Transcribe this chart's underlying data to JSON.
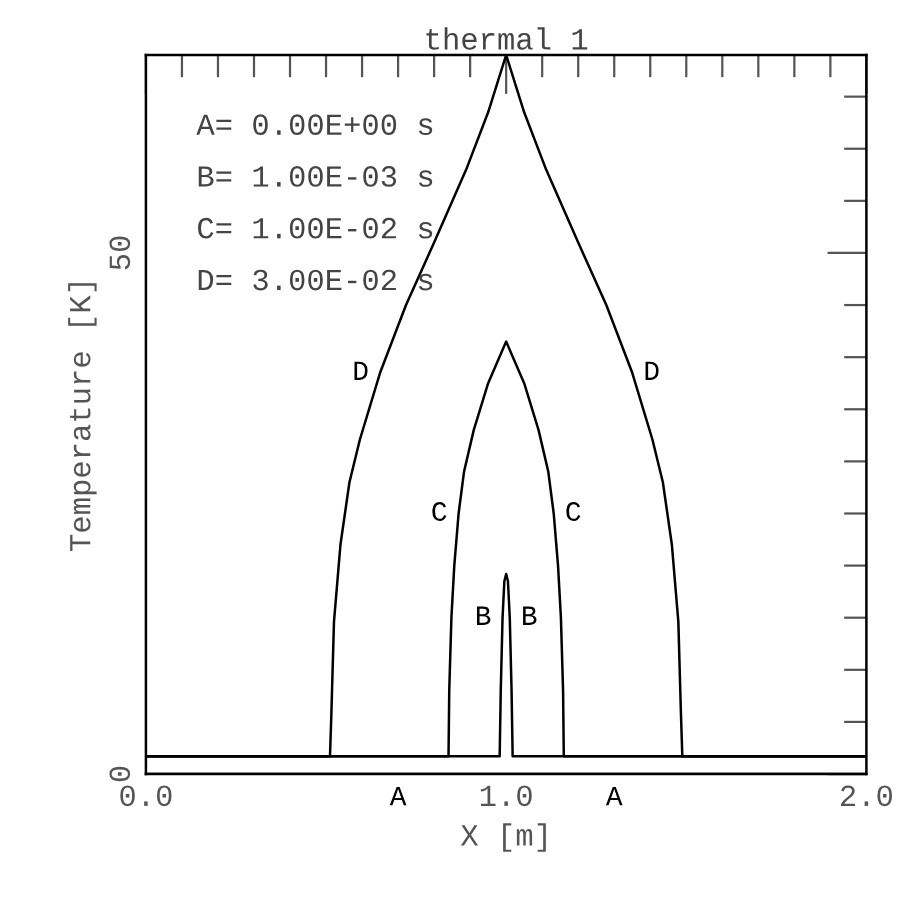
{
  "chart_data": {
    "type": "line",
    "title": "thermal 1",
    "xlabel": "X [m]",
    "ylabel": "Temperature [K]",
    "xlim": [
      0,
      2
    ],
    "ylim": [
      0,
      69
    ],
    "xticks": [
      {
        "value": 0,
        "label": "0.0"
      },
      {
        "value": 0.1,
        "label": null
      },
      {
        "value": 0.2,
        "label": null
      },
      {
        "value": 0.3,
        "label": null
      },
      {
        "value": 0.4,
        "label": null
      },
      {
        "value": 0.5,
        "label": null
      },
      {
        "value": 0.6,
        "label": null
      },
      {
        "value": 0.7,
        "label": null
      },
      {
        "value": 0.8,
        "label": null
      },
      {
        "value": 0.9,
        "label": null
      },
      {
        "value": 1,
        "label": "1.0"
      },
      {
        "value": 1.1,
        "label": null
      },
      {
        "value": 1.2,
        "label": null
      },
      {
        "value": 1.3,
        "label": null
      },
      {
        "value": 1.4,
        "label": null
      },
      {
        "value": 1.5,
        "label": null
      },
      {
        "value": 1.6,
        "label": null
      },
      {
        "value": 1.7,
        "label": null
      },
      {
        "value": 1.8,
        "label": null
      },
      {
        "value": 1.9,
        "label": null
      },
      {
        "value": 2,
        "label": "2.0"
      }
    ],
    "yticks": [
      0,
      {
        "value": 5,
        "label": null
      },
      {
        "value": 10,
        "label": null
      },
      {
        "value": 15,
        "label": null
      },
      {
        "value": 20,
        "label": null
      },
      {
        "value": 25,
        "label": null
      },
      {
        "value": 30,
        "label": null
      },
      {
        "value": 35,
        "label": null
      },
      {
        "value": 40,
        "label": null
      },
      {
        "value": 45,
        "label": null
      },
      50,
      {
        "value": 55,
        "label": null
      },
      {
        "value": 60,
        "label": null
      },
      {
        "value": 65,
        "label": null
      }
    ],
    "grid": false,
    "legend": false,
    "marker": "none",
    "line_style": "solid",
    "annotations": [
      "A= 0.00E+00 s",
      "B= 1.00E-03 s",
      "C= 1.00E-02 s",
      "D= 3.00E-02 s"
    ],
    "series": [
      {
        "name": "A",
        "color": "#000000",
        "x": [
          0,
          0.7,
          1.3,
          2
        ],
        "values": [
          0,
          0,
          0,
          0
        ]
      },
      {
        "name": "B",
        "color": "#000000",
        "x": [
          0,
          0.982,
          0.985,
          0.99,
          0.995,
          1.0,
          1.005,
          1.01,
          1.015,
          1.018,
          2
        ],
        "values": [
          1.7,
          1.7,
          8,
          15,
          18.5,
          19.2,
          18.5,
          15,
          8,
          1.7,
          1.7
        ]
      },
      {
        "name": "C",
        "color": "#000000",
        "x": [
          0,
          0.84,
          0.842,
          0.848,
          0.856,
          0.868,
          0.883,
          0.91,
          0.95,
          1.0,
          1.05,
          1.09,
          1.117,
          1.132,
          1.144,
          1.152,
          1.158,
          1.16,
          2
        ],
        "values": [
          1.7,
          1.7,
          8,
          15,
          20,
          25,
          29,
          33,
          37.5,
          41.5,
          37.5,
          33,
          29,
          25,
          20,
          15,
          8,
          1.7,
          1.7
        ]
      },
      {
        "name": "D",
        "color": "#000000",
        "x": [
          0,
          0.511,
          0.515,
          0.522,
          0.54,
          0.565,
          0.594,
          0.65,
          0.722,
          0.8,
          0.889,
          0.95,
          1.0,
          1.05,
          1.111,
          1.2,
          1.278,
          1.35,
          1.406,
          1.435,
          1.46,
          1.478,
          1.485,
          1.489,
          2
        ],
        "values": [
          1.7,
          1.7,
          6,
          14.6,
          22,
          28,
          32.1,
          38.5,
          45,
          51,
          58,
          63.5,
          69,
          63.5,
          58,
          51,
          45,
          38.5,
          32.1,
          28,
          22,
          14.6,
          6,
          1.7,
          1.7
        ]
      }
    ]
  }
}
